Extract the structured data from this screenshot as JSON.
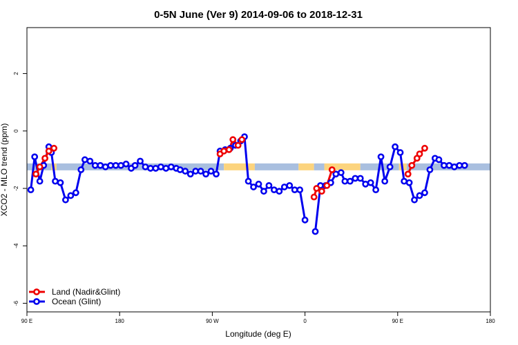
{
  "chart_data": {
    "type": "line",
    "title": "0-5N June (Ver 9)   2014-09-06 to 2018-12-31",
    "xlabel": "Longitude (deg E)",
    "ylabel": "XCO2 - MLO trend (ppm)",
    "xlim": [
      90,
      450
    ],
    "ylim": [
      -6.3,
      3.6
    ],
    "x_ticks": [
      {
        "value": 90,
        "label": "90 E"
      },
      {
        "value": 162,
        "label": "180"
      },
      {
        "value": 234,
        "label": "90 W"
      },
      {
        "value": 306,
        "label": "0"
      },
      {
        "value": 378,
        "label": "90 E"
      },
      {
        "value": 450,
        "label": "180"
      }
    ],
    "y_ticks": [
      {
        "value": 2,
        "label": "2"
      },
      {
        "value": 0,
        "label": "0"
      },
      {
        "value": -2,
        "label": "-2"
      },
      {
        "value": -4,
        "label": "-4"
      },
      {
        "value": -6,
        "label": "-6"
      }
    ],
    "grid": false,
    "legend_position": "bottom-left",
    "background_band": {
      "y_center": -1.25,
      "colors": {
        "ocean": "#a9bfdf",
        "land": "#fcd47e"
      },
      "segments": [
        {
          "x0": 90,
          "x1": 109,
          "kind": "ocean"
        },
        {
          "x0": 109,
          "x1": 113,
          "kind": "land"
        },
        {
          "x0": 113,
          "x1": 243,
          "kind": "ocean"
        },
        {
          "x0": 243,
          "x1": 267,
          "kind": "land"
        },
        {
          "x0": 267,
          "x1": 301,
          "kind": "ocean"
        },
        {
          "x0": 301,
          "x1": 313,
          "kind": "land"
        },
        {
          "x0": 313,
          "x1": 321,
          "kind": "ocean"
        },
        {
          "x0": 321,
          "x1": 349,
          "kind": "land"
        },
        {
          "x0": 349,
          "x1": 379,
          "kind": "ocean"
        },
        {
          "x0": 379,
          "x1": 385,
          "kind": "land"
        },
        {
          "x0": 385,
          "x1": 450,
          "kind": "ocean"
        }
      ]
    },
    "series": [
      {
        "name": "Land (Nadir&Glint)",
        "color": "#ee0000",
        "segments": [
          [
            [
              97,
              -1.5
            ],
            [
              100,
              -1.25
            ],
            [
              104,
              -0.95
            ],
            [
              107,
              -0.7
            ],
            [
              111,
              -0.6
            ]
          ],
          [
            [
              240,
              -0.8
            ],
            [
              243,
              -0.7
            ],
            [
              247,
              -0.65
            ],
            [
              250,
              -0.3
            ],
            [
              254,
              -0.5
            ],
            [
              257,
              -0.3
            ]
          ],
          [
            [
              313,
              -2.3
            ],
            [
              315,
              -2.0
            ],
            [
              319,
              -2.1
            ],
            [
              323,
              -1.9
            ],
            [
              327,
              -1.35
            ]
          ],
          [
            [
              386,
              -1.5
            ],
            [
              389,
              -1.2
            ],
            [
              393,
              -0.95
            ],
            [
              395,
              -0.8
            ],
            [
              399,
              -0.6
            ]
          ]
        ]
      },
      {
        "name": "Ocean (Glint)",
        "color": "#0000ee",
        "segments": [
          [
            [
              93,
              -2.05
            ],
            [
              96,
              -0.9
            ],
            [
              100,
              -1.75
            ],
            [
              103,
              -1.2
            ],
            [
              107,
              -0.55
            ],
            [
              109,
              -0.75
            ],
            [
              112,
              -1.75
            ],
            [
              116,
              -1.8
            ],
            [
              120,
              -2.4
            ],
            [
              124,
              -2.25
            ],
            [
              128,
              -2.15
            ],
            [
              132,
              -1.35
            ],
            [
              135,
              -1.0
            ],
            [
              139,
              -1.05
            ],
            [
              143,
              -1.2
            ],
            [
              147,
              -1.2
            ],
            [
              151,
              -1.25
            ],
            [
              155,
              -1.2
            ],
            [
              159,
              -1.2
            ],
            [
              163,
              -1.2
            ],
            [
              167,
              -1.15
            ],
            [
              171,
              -1.3
            ],
            [
              174,
              -1.2
            ],
            [
              178,
              -1.05
            ],
            [
              182,
              -1.25
            ],
            [
              186,
              -1.3
            ],
            [
              190,
              -1.3
            ],
            [
              194,
              -1.25
            ],
            [
              198,
              -1.3
            ],
            [
              202,
              -1.25
            ],
            [
              206,
              -1.3
            ],
            [
              209,
              -1.35
            ],
            [
              213,
              -1.4
            ],
            [
              217,
              -1.5
            ],
            [
              221,
              -1.4
            ],
            [
              225,
              -1.4
            ],
            [
              229,
              -1.5
            ],
            [
              233,
              -1.4
            ],
            [
              237,
              -1.5
            ],
            [
              240,
              -0.7
            ],
            [
              244,
              -0.65
            ],
            [
              248,
              -0.6
            ],
            [
              252,
              -0.5
            ],
            [
              256,
              -0.35
            ],
            [
              259,
              -0.2
            ],
            [
              262,
              -1.75
            ],
            [
              266,
              -1.95
            ],
            [
              270,
              -1.85
            ],
            [
              274,
              -2.1
            ],
            [
              278,
              -1.9
            ],
            [
              282,
              -2.05
            ],
            [
              286,
              -2.1
            ],
            [
              290,
              -1.95
            ],
            [
              294,
              -1.9
            ],
            [
              298,
              -2.05
            ],
            [
              302,
              -2.05
            ],
            [
              306,
              -3.1
            ]
          ],
          [
            [
              314,
              -3.5
            ],
            [
              318,
              -1.9
            ],
            [
              322,
              -1.9
            ],
            [
              326,
              -1.8
            ],
            [
              330,
              -1.5
            ],
            [
              334,
              -1.45
            ],
            [
              337,
              -1.75
            ],
            [
              341,
              -1.75
            ],
            [
              345,
              -1.65
            ],
            [
              349,
              -1.65
            ],
            [
              353,
              -1.85
            ],
            [
              357,
              -1.8
            ],
            [
              361,
              -2.05
            ],
            [
              365,
              -0.9
            ],
            [
              368,
              -1.75
            ],
            [
              372,
              -1.25
            ],
            [
              376,
              -0.55
            ],
            [
              380,
              -0.75
            ],
            [
              383,
              -1.75
            ],
            [
              387,
              -1.8
            ],
            [
              391,
              -2.4
            ],
            [
              395,
              -2.25
            ],
            [
              399,
              -2.15
            ],
            [
              403,
              -1.35
            ],
            [
              407,
              -0.95
            ],
            [
              410,
              -1.0
            ],
            [
              414,
              -1.2
            ],
            [
              418,
              -1.2
            ],
            [
              422,
              -1.25
            ],
            [
              426,
              -1.2
            ],
            [
              430,
              -1.2
            ]
          ]
        ]
      }
    ]
  }
}
